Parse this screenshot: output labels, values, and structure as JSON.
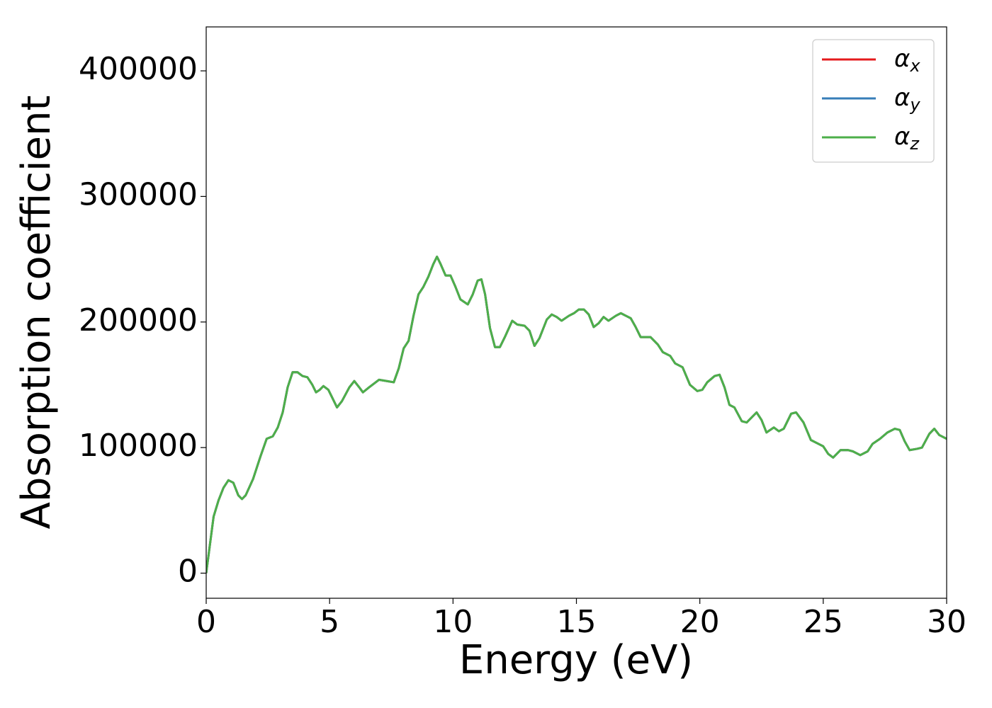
{
  "chart_data": {
    "type": "line",
    "xlabel": "Energy (eV)",
    "ylabel": "Absorption coefficient",
    "x": [
      0,
      0.1,
      0.3,
      0.5,
      0.7,
      0.9,
      1.1,
      1.3,
      1.45,
      1.6,
      1.9,
      2.2,
      2.45,
      2.7,
      2.9,
      3.1,
      3.3,
      3.5,
      3.7,
      3.9,
      4.1,
      4.3,
      4.45,
      4.6,
      4.75,
      4.95,
      5.1,
      5.3,
      5.5,
      5.8,
      6.0,
      6.2,
      6.35,
      6.6,
      7.0,
      7.3,
      7.6,
      7.8,
      8.0,
      8.2,
      8.4,
      8.6,
      8.8,
      9.0,
      9.2,
      9.35,
      9.5,
      9.7,
      9.9,
      10.1,
      10.3,
      10.6,
      10.8,
      11.0,
      11.15,
      11.3,
      11.5,
      11.7,
      11.9,
      12.1,
      12.4,
      12.6,
      12.9,
      13.1,
      13.3,
      13.5,
      13.8,
      14.0,
      14.2,
      14.4,
      14.7,
      14.9,
      15.1,
      15.3,
      15.5,
      15.7,
      15.9,
      16.1,
      16.3,
      16.6,
      16.8,
      17.0,
      17.2,
      17.4,
      17.6,
      17.8,
      18.0,
      18.3,
      18.5,
      18.8,
      19.0,
      19.3,
      19.6,
      19.9,
      20.1,
      20.3,
      20.6,
      20.8,
      21.0,
      21.2,
      21.4,
      21.7,
      21.9,
      22.1,
      22.3,
      22.5,
      22.7,
      23.0,
      23.2,
      23.4,
      23.7,
      23.9,
      24.2,
      24.5,
      24.8,
      25.0,
      25.2,
      25.4,
      25.7,
      26.0,
      26.2,
      26.5,
      26.8,
      27.0,
      27.3,
      27.6,
      27.9,
      28.1,
      28.3,
      28.5,
      28.8,
      29.0,
      29.3,
      29.5,
      29.7,
      30.0
    ],
    "series": [
      {
        "name": "αx",
        "color": "#e41a1c",
        "values": [
          0,
          15000,
          45000,
          58000,
          68000,
          74000,
          72000,
          62000,
          59000,
          62000,
          75000,
          93000,
          107000,
          109000,
          116000,
          128000,
          148000,
          160000,
          160000,
          157000,
          156000,
          150000,
          144000,
          146000,
          149000,
          146000,
          140000,
          132000,
          137000,
          148000,
          153000,
          148000,
          144000,
          148000,
          154000,
          153000,
          152000,
          163000,
          179000,
          185000,
          205000,
          222000,
          228000,
          236000,
          246000,
          252000,
          246000,
          237000,
          237000,
          228000,
          218000,
          214000,
          222000,
          233000,
          234000,
          222000,
          195000,
          180000,
          180000,
          188000,
          201000,
          198000,
          197000,
          193000,
          181000,
          187000,
          202000,
          206000,
          204000,
          201000,
          205000,
          207000,
          210000,
          210000,
          206000,
          196000,
          199000,
          204000,
          201000,
          205000,
          207000,
          205000,
          203000,
          196000,
          188000,
          188000,
          188000,
          182000,
          176000,
          173000,
          167000,
          164000,
          150000,
          145000,
          146000,
          152000,
          157000,
          158000,
          148000,
          134000,
          132000,
          121000,
          120000,
          124000,
          128000,
          122000,
          112000,
          116000,
          113000,
          115000,
          127000,
          128000,
          120000,
          106000,
          103000,
          101000,
          95000,
          92000,
          98000,
          98000,
          97000,
          94000,
          97000,
          103000,
          107000,
          112000,
          115000,
          114000,
          105000,
          98000,
          99000,
          100000,
          111000,
          115000,
          110000,
          107000
        ]
      },
      {
        "name": "αy",
        "color": "#377eb8",
        "values": [
          0,
          15000,
          45000,
          58000,
          68000,
          74000,
          72000,
          62000,
          59000,
          62000,
          75000,
          93000,
          107000,
          109000,
          116000,
          128000,
          148000,
          160000,
          160000,
          157000,
          156000,
          150000,
          144000,
          146000,
          149000,
          146000,
          140000,
          132000,
          137000,
          148000,
          153000,
          148000,
          144000,
          148000,
          154000,
          153000,
          152000,
          163000,
          179000,
          185000,
          205000,
          222000,
          228000,
          236000,
          246000,
          252000,
          246000,
          237000,
          237000,
          228000,
          218000,
          214000,
          222000,
          233000,
          234000,
          222000,
          195000,
          180000,
          180000,
          188000,
          201000,
          198000,
          197000,
          193000,
          181000,
          187000,
          202000,
          206000,
          204000,
          201000,
          205000,
          207000,
          210000,
          210000,
          206000,
          196000,
          199000,
          204000,
          201000,
          205000,
          207000,
          205000,
          203000,
          196000,
          188000,
          188000,
          188000,
          182000,
          176000,
          173000,
          167000,
          164000,
          150000,
          145000,
          146000,
          152000,
          157000,
          158000,
          148000,
          134000,
          132000,
          121000,
          120000,
          124000,
          128000,
          122000,
          112000,
          116000,
          113000,
          115000,
          127000,
          128000,
          120000,
          106000,
          103000,
          101000,
          95000,
          92000,
          98000,
          98000,
          97000,
          94000,
          97000,
          103000,
          107000,
          112000,
          115000,
          114000,
          105000,
          98000,
          99000,
          100000,
          111000,
          115000,
          110000,
          107000
        ]
      },
      {
        "name": "αz",
        "color": "#4daf4a",
        "values": [
          0,
          15000,
          45000,
          58000,
          68000,
          74000,
          72000,
          62000,
          59000,
          62000,
          75000,
          93000,
          107000,
          109000,
          116000,
          128000,
          148000,
          160000,
          160000,
          157000,
          156000,
          150000,
          144000,
          146000,
          149000,
          146000,
          140000,
          132000,
          137000,
          148000,
          153000,
          148000,
          144000,
          148000,
          154000,
          153000,
          152000,
          163000,
          179000,
          185000,
          205000,
          222000,
          228000,
          236000,
          246000,
          252000,
          246000,
          237000,
          237000,
          228000,
          218000,
          214000,
          222000,
          233000,
          234000,
          222000,
          195000,
          180000,
          180000,
          188000,
          201000,
          198000,
          197000,
          193000,
          181000,
          187000,
          202000,
          206000,
          204000,
          201000,
          205000,
          207000,
          210000,
          210000,
          206000,
          196000,
          199000,
          204000,
          201000,
          205000,
          207000,
          205000,
          203000,
          196000,
          188000,
          188000,
          188000,
          182000,
          176000,
          173000,
          167000,
          164000,
          150000,
          145000,
          146000,
          152000,
          157000,
          158000,
          148000,
          134000,
          132000,
          121000,
          120000,
          124000,
          128000,
          122000,
          112000,
          116000,
          113000,
          115000,
          127000,
          128000,
          120000,
          106000,
          103000,
          101000,
          95000,
          92000,
          98000,
          98000,
          97000,
          94000,
          97000,
          103000,
          107000,
          112000,
          115000,
          114000,
          105000,
          98000,
          99000,
          100000,
          111000,
          115000,
          110000,
          107000
        ]
      }
    ],
    "xlim": [
      0,
      30
    ],
    "xticks": [
      0,
      5,
      10,
      15,
      20,
      25,
      30
    ],
    "ylim": [
      -20000,
      435000
    ],
    "yticks": [
      0,
      100000,
      200000,
      300000,
      400000
    ],
    "grid": false,
    "legend": "upper right"
  }
}
